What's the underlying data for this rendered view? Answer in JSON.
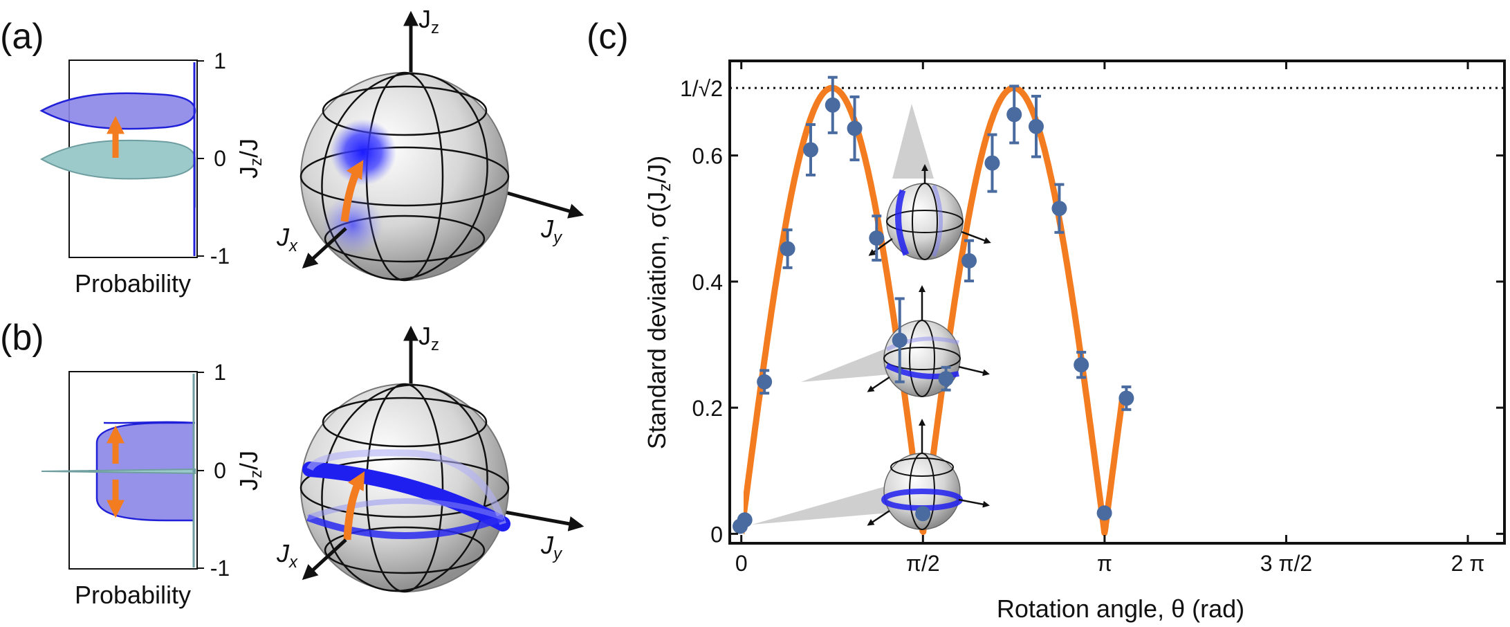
{
  "panel_labels": {
    "a": "(a)",
    "b": "(b)",
    "c": "(c)"
  },
  "panel_a": {
    "xlabel": "Probability",
    "ylabel": "J_z/J",
    "yticks": [
      "1",
      "0",
      "-1"
    ],
    "sphere_axes": {
      "z": "J",
      "z_sub": "z",
      "x": "J",
      "x_sub": "x",
      "y": "J",
      "y_sub": "y"
    }
  },
  "panel_b": {
    "xlabel": "Probability",
    "ylabel": "J_z/J",
    "yticks": [
      "1",
      "0",
      "-1"
    ],
    "sphere_axes": {
      "z": "J",
      "z_sub": "z",
      "x": "J",
      "x_sub": "x",
      "y": "J",
      "y_sub": "y"
    }
  },
  "colors": {
    "orange": "#f47c20",
    "blue": "#3a3af0",
    "violet": "#8b86e8",
    "teal": "#9ccacb",
    "marker": "#4a6b9f"
  },
  "chart_data": {
    "type": "scatter",
    "xlabel": "Rotation angle, θ (rad)",
    "ylabel": "Standard deviation, σ(J",
    "ylabel_sub": "z",
    "ylabel_tail": "/J)",
    "xlim": [
      -0.1,
      6.6
    ],
    "ylim": [
      -0.015,
      0.75
    ],
    "xticks": [
      {
        "value": 0,
        "label": "0"
      },
      {
        "value": 1.5708,
        "label": "π/2"
      },
      {
        "value": 3.1416,
        "label": "π"
      },
      {
        "value": 4.7124,
        "label": "3 π/2"
      },
      {
        "value": 6.2832,
        "label": "2 π"
      }
    ],
    "yticks": [
      {
        "value": 0,
        "label": "0"
      },
      {
        "value": 0.2,
        "label": "0.2"
      },
      {
        "value": 0.4,
        "label": "0.4"
      },
      {
        "value": 0.6,
        "label": "0.6"
      }
    ],
    "reference_line": {
      "value": 0.7071,
      "label": "1/√2"
    },
    "points": [
      {
        "x": -0.01,
        "y": 0.012,
        "err": 0.006
      },
      {
        "x": 0.03,
        "y": 0.022,
        "err": 0.006
      },
      {
        "x": 0.2,
        "y": 0.241,
        "err": 0.018
      },
      {
        "x": 0.4,
        "y": 0.452,
        "err": 0.03
      },
      {
        "x": 0.6,
        "y": 0.609,
        "err": 0.04
      },
      {
        "x": 0.79,
        "y": 0.68,
        "err": 0.044
      },
      {
        "x": 0.98,
        "y": 0.643,
        "err": 0.05
      },
      {
        "x": 1.17,
        "y": 0.469,
        "err": 0.035
      },
      {
        "x": 1.37,
        "y": 0.307,
        "err": 0.066
      },
      {
        "x": 1.57,
        "y": 0.032,
        "err": 0.006
      },
      {
        "x": 1.77,
        "y": 0.246,
        "err": 0.018
      },
      {
        "x": 1.97,
        "y": 0.433,
        "err": 0.032
      },
      {
        "x": 2.17,
        "y": 0.588,
        "err": 0.045
      },
      {
        "x": 2.36,
        "y": 0.665,
        "err": 0.045
      },
      {
        "x": 2.55,
        "y": 0.646,
        "err": 0.048
      },
      {
        "x": 2.75,
        "y": 0.516,
        "err": 0.038
      },
      {
        "x": 2.94,
        "y": 0.268,
        "err": 0.02
      },
      {
        "x": 3.14,
        "y": 0.033,
        "err": 0.006
      },
      {
        "x": 3.33,
        "y": 0.215,
        "err": 0.018
      }
    ],
    "fit": {
      "function": "|sin(2θ)|/√2",
      "xrange": [
        0,
        3.3
      ]
    }
  }
}
